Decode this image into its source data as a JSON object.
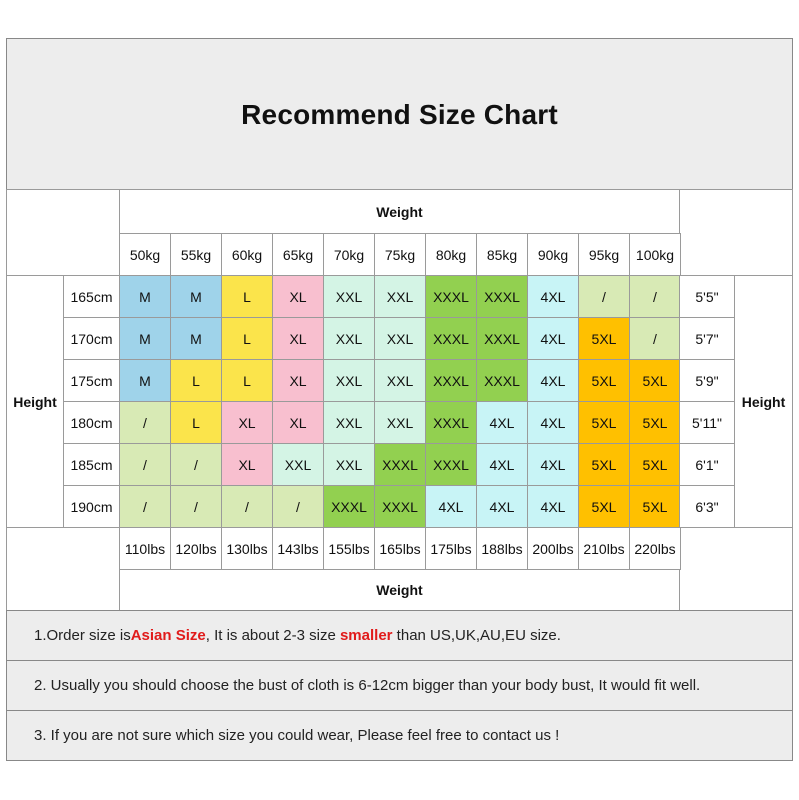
{
  "title": "Recommend Size Chart",
  "weight_label": "Weight",
  "height_label": "Height",
  "weights_kg": [
    "50kg",
    "55kg",
    "60kg",
    "65kg",
    "70kg",
    "75kg",
    "80kg",
    "85kg",
    "90kg",
    "95kg",
    "100kg"
  ],
  "weights_lbs": [
    "110lbs",
    "120lbs",
    "130lbs",
    "143lbs",
    "155lbs",
    "165lbs",
    "175lbs",
    "188lbs",
    "200lbs",
    "210lbs",
    "220lbs"
  ],
  "rows": [
    {
      "cm": "165cm",
      "ft": "5'5\"",
      "sizes": [
        "M",
        "M",
        "L",
        "XL",
        "XXL",
        "XXL",
        "XXXL",
        "XXXL",
        "4XL",
        "/",
        "/"
      ]
    },
    {
      "cm": "170cm",
      "ft": "5'7\"",
      "sizes": [
        "M",
        "M",
        "L",
        "XL",
        "XXL",
        "XXL",
        "XXXL",
        "XXXL",
        "4XL",
        "5XL",
        "/"
      ]
    },
    {
      "cm": "175cm",
      "ft": "5'9\"",
      "sizes": [
        "M",
        "L",
        "L",
        "XL",
        "XXL",
        "XXL",
        "XXXL",
        "XXXL",
        "4XL",
        "5XL",
        "5XL"
      ]
    },
    {
      "cm": "180cm",
      "ft": "5'11\"",
      "sizes": [
        "/",
        "L",
        "XL",
        "XL",
        "XXL",
        "XXL",
        "XXXL",
        "4XL",
        "4XL",
        "5XL",
        "5XL"
      ]
    },
    {
      "cm": "185cm",
      "ft": "6'1\"",
      "sizes": [
        "/",
        "/",
        "XL",
        "XXL",
        "XXL",
        "XXXL",
        "XXXL",
        "4XL",
        "4XL",
        "5XL",
        "5XL"
      ]
    },
    {
      "cm": "190cm",
      "ft": "6'3\"",
      "sizes": [
        "/",
        "/",
        "/",
        "/",
        "XXXL",
        "XXXL",
        "4XL",
        "4XL",
        "4XL",
        "5XL",
        "5XL"
      ]
    }
  ],
  "colors": {
    "M": "#9fd3ea",
    "L": "#fbe44b",
    "XL": "#f8bfcf",
    "XXL": "#d4f4e5",
    "XXXL": "#92d050",
    "4XL": "#c8f4f6",
    "5XL": "#ffc000",
    "/": "#d8eab5",
    "accent_red": "#e11b1b"
  },
  "notes": {
    "n1_pre": "1.Order size is ",
    "n1_red1": "Asian Size",
    "n1_mid": ", It is about 2-3 size ",
    "n1_red2": "smaller",
    "n1_post": " than US,UK,AU,EU size.",
    "n2": "2. Usually you should choose the bust of cloth is 6-12cm bigger than your body bust, It would fit well.",
    "n3": "3. If you are not sure which size you could wear, Please feel free to contact us !"
  }
}
